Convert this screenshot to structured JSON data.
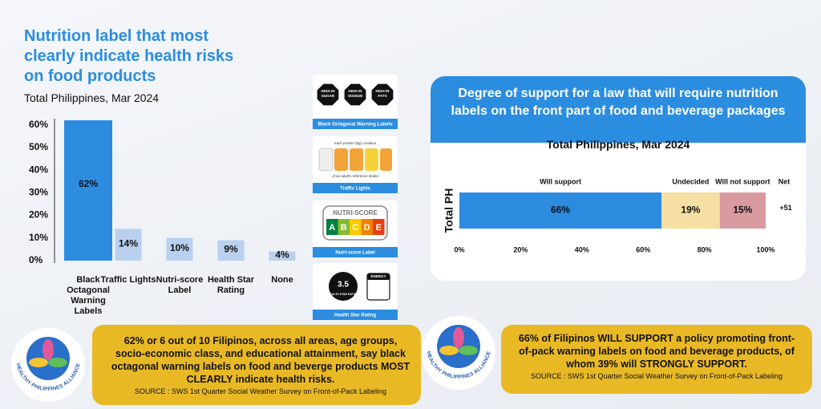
{
  "chart_data": [
    {
      "type": "bar",
      "title": "Nutrition label that most clearly indicate health risks on food products",
      "subtitle": "Total Philippines, Mar 2024",
      "categories": [
        "Black Octagonal Warning Labels",
        "Traffic Lights",
        "Nutri-score Label",
        "Health Star Rating",
        "None"
      ],
      "values": [
        62,
        14,
        10,
        9,
        4
      ],
      "value_labels": [
        "62%",
        "14%",
        "10%",
        "9%",
        "4%"
      ],
      "colors": [
        "#2d8be0",
        "#b9d0ef",
        "#b9d0ef",
        "#b9d0ef",
        "#b9d0ef"
      ],
      "ylim": [
        0,
        62
      ],
      "yticks": [
        {
          "value": 0,
          "label": "0%"
        },
        {
          "value": 10,
          "label": "10%"
        },
        {
          "value": 20,
          "label": "20%"
        },
        {
          "value": 30,
          "label": "30%"
        },
        {
          "value": 40,
          "label": "40%"
        },
        {
          "value": 50,
          "label": "50%"
        },
        {
          "value": 60,
          "label": "60%"
        }
      ]
    },
    {
      "type": "stacked-barh",
      "title": "Degree of support for a law that will require nutrition labels on the front part of food and beverage packages",
      "subtitle": "Total Philippines, Mar 2024",
      "categories": [
        "Total PH"
      ],
      "series": [
        {
          "name": "Will support",
          "color": "#2d8be0",
          "values": [
            66
          ],
          "value_labels": [
            "66%"
          ]
        },
        {
          "name": "Undecided",
          "color": "#f6dfa2",
          "values": [
            19
          ],
          "value_labels": [
            "19%"
          ]
        },
        {
          "name": "Will not support",
          "color": "#d99aa0",
          "values": [
            15
          ],
          "value_labels": [
            "15%"
          ]
        }
      ],
      "net": {
        "name": "Net",
        "values": [
          51
        ],
        "value_labels": [
          "+51"
        ]
      },
      "xlim": [
        0,
        100
      ],
      "xticks": [
        {
          "value": 0,
          "label": "0%"
        },
        {
          "value": 20,
          "label": "20%"
        },
        {
          "value": 40,
          "label": "40%"
        },
        {
          "value": 60,
          "label": "60%"
        },
        {
          "value": 80,
          "label": "80%"
        },
        {
          "value": 100,
          "label": "100%"
        }
      ]
    }
  ],
  "cards": [
    {
      "caption": "Black Octagonal Warning Labels",
      "icon_text": [
        "HIGH IN",
        "SUGAR",
        "HIGH IN",
        "SODIUM",
        "HIGH IN",
        "FATS"
      ]
    },
    {
      "caption": "Traffic Lights",
      "icon_text": [
        "each portion (5g) contains",
        "of an adult's reference intake"
      ]
    },
    {
      "caption": "Nutri-score Label",
      "icon_text": [
        "NUTRI-SCORE",
        "A",
        "B",
        "C",
        "D",
        "E"
      ]
    },
    {
      "caption": "Health Star Rating",
      "icon_text": [
        "3.5",
        "HEALTH STAR RATING",
        "ENERGY"
      ]
    }
  ],
  "summaries": [
    {
      "text": "62% or 6 out of 10 Filipinos, across all areas, age groups, socio-economic class, and educational attainment, say black octagonal warning labels on food and beverge products MOST CLEARLY indicate health risks.",
      "source": "SOURCE : SWS 1st Quarter Social Weather Survey on Front-of-Pack Labeling"
    },
    {
      "text": "66% of Filipinos WILL SUPPORT a policy promoting front-of-pack warning labels on food and beverage products, of whom 39% will STRONGLY SUPPORT.",
      "source": "SOURCE : SWS 1st Quarter Social Weather Survey on Front-of-Pack Labeling"
    }
  ],
  "logo": {
    "text": "HEALTHY PHILIPPINES ALLIANCE"
  }
}
